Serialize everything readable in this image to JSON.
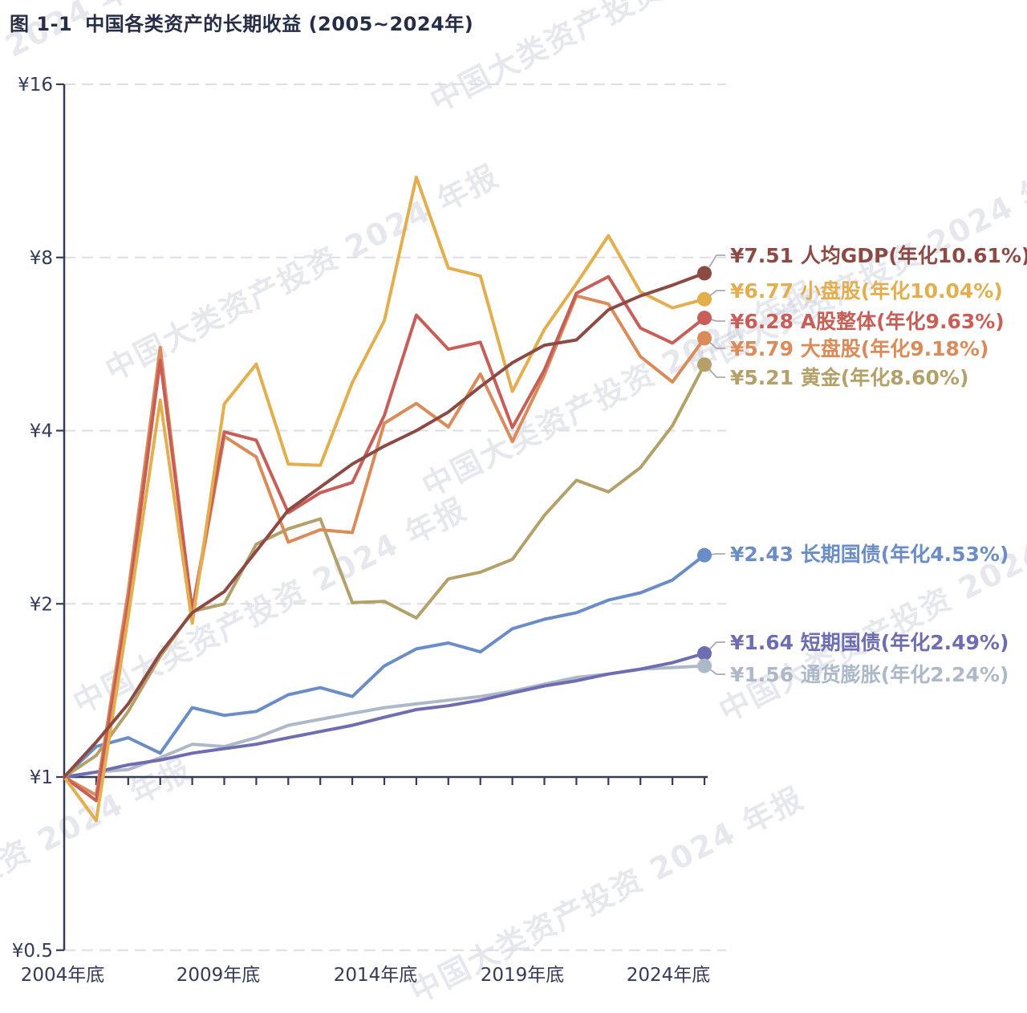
{
  "title": {
    "prefix": "图 1-1",
    "text": "中国各类资产的长期收益 (2005~2024年)"
  },
  "watermark": {
    "text": "中国大类资产投资 2024 年报"
  },
  "chart_data": {
    "type": "line",
    "title": "中国各类资产的长期收益 (2005~2024年)",
    "y_scale": "log2",
    "ylim": [
      0.5,
      16
    ],
    "grid": "dashed-horizontal",
    "legend_position": "right",
    "x_years": [
      2004,
      2005,
      2006,
      2007,
      2008,
      2009,
      2010,
      2011,
      2012,
      2013,
      2014,
      2015,
      2016,
      2017,
      2018,
      2019,
      2020,
      2021,
      2022,
      2023,
      2024
    ],
    "x_tick_labels": [
      "2004年底",
      "2009年底",
      "2014年底",
      "2019年底",
      "2024年底"
    ],
    "y_ticks": [
      {
        "label": "¥16",
        "value": 16
      },
      {
        "label": "¥8",
        "value": 8
      },
      {
        "label": "¥4",
        "value": 4
      },
      {
        "label": "¥2",
        "value": 2
      },
      {
        "label": "¥1",
        "value": 1
      },
      {
        "label": "¥0.5",
        "value": 0.5
      }
    ],
    "series": [
      {
        "id": "gdp-per-capita",
        "name": "人均GDP",
        "label": "¥7.51 人均GDP(年化10.61%)",
        "final_value": "¥7.51",
        "annualized": "10.61%",
        "color": "#8d4a44",
        "values": [
          1.0,
          1.15,
          1.34,
          1.64,
          1.93,
          2.1,
          2.47,
          2.91,
          3.19,
          3.5,
          3.76,
          4.0,
          4.31,
          4.77,
          5.25,
          5.63,
          5.75,
          6.49,
          6.86,
          7.16,
          7.51
        ]
      },
      {
        "id": "small-cap",
        "name": "小盘股",
        "label": "¥6.77 小盘股(年化10.04%)",
        "final_value": "¥6.77",
        "annualized": "10.04%",
        "color": "#e3ae4d",
        "values": [
          1.0,
          0.84,
          1.9,
          4.52,
          1.85,
          4.45,
          5.22,
          3.5,
          3.48,
          4.85,
          6.21,
          11.03,
          7.67,
          7.43,
          4.68,
          6.0,
          7.2,
          8.73,
          6.97,
          6.54,
          6.77
        ]
      },
      {
        "id": "a-share-total",
        "name": "A股整体",
        "label": "¥6.28 A股整体(年化9.63%)",
        "final_value": "¥6.28",
        "annualized": "9.63%",
        "color": "#c75f58",
        "values": [
          1.0,
          0.91,
          2.0,
          5.3,
          1.95,
          3.98,
          3.85,
          2.88,
          3.12,
          3.25,
          4.25,
          6.35,
          5.54,
          5.7,
          4.05,
          5.1,
          6.93,
          7.41,
          6.03,
          5.68,
          6.28
        ]
      },
      {
        "id": "large-cap",
        "name": "大盘股",
        "label": "¥5.79 大盘股(年化9.18%)",
        "final_value": "¥5.79",
        "annualized": "9.18%",
        "color": "#da8b59",
        "values": [
          1.0,
          0.93,
          2.1,
          5.58,
          1.92,
          3.91,
          3.6,
          2.56,
          2.69,
          2.66,
          4.12,
          4.46,
          4.06,
          5.02,
          3.83,
          5.0,
          6.86,
          6.64,
          5.38,
          4.86,
          5.79
        ]
      },
      {
        "id": "gold",
        "name": "黄金",
        "label": "¥5.21 黄金(年化8.60%)",
        "final_value": "¥5.21",
        "annualized": "8.60%",
        "color": "#b3a169",
        "values": [
          1.0,
          1.09,
          1.3,
          1.62,
          1.94,
          2.0,
          2.54,
          2.7,
          2.81,
          2.01,
          2.02,
          1.89,
          2.21,
          2.27,
          2.39,
          2.85,
          3.28,
          3.13,
          3.45,
          4.08,
          5.21
        ]
      },
      {
        "id": "long-term-bond",
        "name": "长期国债",
        "label": "¥2.43 长期国债(年化4.53%)",
        "final_value": "¥2.43",
        "annualized": "4.53%",
        "color": "#6a8cc7",
        "values": [
          1.0,
          1.13,
          1.17,
          1.1,
          1.32,
          1.28,
          1.3,
          1.39,
          1.43,
          1.38,
          1.56,
          1.67,
          1.71,
          1.65,
          1.81,
          1.88,
          1.93,
          2.03,
          2.09,
          2.2,
          2.43
        ]
      },
      {
        "id": "short-term-bond",
        "name": "短期国债",
        "label": "¥1.64 短期国债(年化2.49%)",
        "final_value": "¥1.64",
        "annualized": "2.49%",
        "color": "#6f6db1",
        "values": [
          1.0,
          1.02,
          1.05,
          1.07,
          1.1,
          1.12,
          1.14,
          1.17,
          1.2,
          1.23,
          1.27,
          1.31,
          1.33,
          1.36,
          1.4,
          1.44,
          1.47,
          1.51,
          1.54,
          1.58,
          1.64
        ]
      },
      {
        "id": "inflation",
        "name": "通货膨胀",
        "label": "¥1.56 通货膨胀(年化2.24%)",
        "final_value": "¥1.56",
        "annualized": "2.24%",
        "color": "#adb8c8",
        "values": [
          1.0,
          1.02,
          1.03,
          1.08,
          1.14,
          1.13,
          1.17,
          1.23,
          1.26,
          1.29,
          1.32,
          1.34,
          1.36,
          1.38,
          1.41,
          1.45,
          1.49,
          1.51,
          1.54,
          1.55,
          1.56
        ]
      }
    ]
  }
}
